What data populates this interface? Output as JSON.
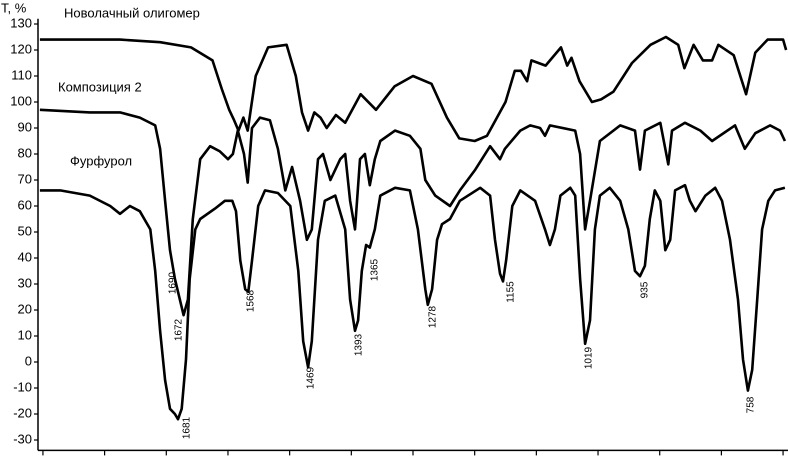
{
  "chart_data": {
    "type": "line",
    "ylabel": "T, %",
    "xlim": [
      1908,
      692
    ],
    "xticks": [
      1900,
      1800,
      1700,
      1600,
      1500,
      1400,
      1300,
      1200,
      1100,
      1000,
      900,
      800,
      700
    ],
    "ylim": [
      -34,
      132
    ],
    "yticks": [
      130,
      120,
      110,
      100,
      90,
      80,
      70,
      60,
      50,
      40,
      30,
      20,
      10,
      0,
      -10,
      -20,
      -30
    ],
    "series": [
      {
        "name": "Новолачный олигомер",
        "color": "#000000",
        "x": [
          1905,
          1840,
          1775,
          1710,
          1660,
          1625,
          1610,
          1598,
          1590,
          1583,
          1575,
          1568,
          1555,
          1535,
          1505,
          1490,
          1480,
          1470,
          1460,
          1450,
          1440,
          1425,
          1410,
          1385,
          1360,
          1330,
          1300,
          1270,
          1245,
          1225,
          1200,
          1180,
          1150,
          1135,
          1125,
          1115,
          1108,
          1085,
          1060,
          1050,
          1043,
          1030,
          1010,
          995,
          975,
          945,
          915,
          890,
          870,
          860,
          845,
          830,
          815,
          805,
          780,
          760,
          745,
          725,
          700,
          695
        ],
        "values": [
          124,
          124,
          124,
          123,
          121,
          116,
          105,
          97,
          93,
          89,
          94,
          89,
          110,
          121,
          122,
          110,
          96,
          89,
          96,
          94,
          90,
          95,
          92,
          103,
          97,
          106,
          110,
          107,
          94,
          86,
          85,
          87,
          100,
          112,
          112,
          108,
          116,
          114,
          121,
          114,
          117,
          108,
          100,
          101,
          104,
          115,
          122,
          125,
          122,
          113,
          122,
          116,
          116,
          122,
          118,
          103,
          119,
          124,
          124,
          120
        ]
      },
      {
        "name": "Композиция 2",
        "color": "#000000",
        "x": [
          1905,
          1824,
          1775,
          1743,
          1718,
          1710,
          1702,
          1694,
          1686,
          1672,
          1665,
          1657,
          1645,
          1629,
          1613,
          1600,
          1592,
          1584,
          1574,
          1568,
          1561,
          1548,
          1532,
          1519,
          1507,
          1496,
          1483,
          1472,
          1464,
          1454,
          1446,
          1434,
          1418,
          1410,
          1402,
          1394,
          1386,
          1378,
          1370,
          1362,
          1353,
          1329,
          1305,
          1288,
          1280,
          1264,
          1240,
          1224,
          1199,
          1175,
          1159,
          1151,
          1126,
          1110,
          1094,
          1086,
          1078,
          1037,
          1029,
          1021,
          1013,
          997,
          964,
          940,
          932,
          924,
          899,
          886,
          880,
          859,
          834,
          815,
          778,
          762,
          745,
          721,
          705,
          697
        ],
        "values": [
          97,
          96,
          96,
          94,
          91,
          82,
          62,
          43,
          32,
          18,
          24,
          55,
          78,
          83,
          81,
          78,
          80,
          89,
          80,
          69,
          90,
          94,
          93,
          82,
          66,
          75,
          62,
          47,
          51,
          78,
          80,
          70,
          78,
          80,
          62,
          51,
          78,
          80,
          68,
          78,
          85,
          89,
          87,
          82,
          70,
          64,
          60,
          66,
          74,
          83,
          78,
          82,
          89,
          91,
          90,
          87,
          91,
          89,
          80,
          51,
          62,
          85,
          91,
          89,
          74,
          89,
          92,
          76,
          89,
          92,
          89,
          85,
          91,
          82,
          88,
          91,
          89,
          85
        ]
      },
      {
        "name": "Фурфурол",
        "color": "#000000",
        "x": [
          1905,
          1872,
          1824,
          1791,
          1775,
          1759,
          1743,
          1726,
          1718,
          1710,
          1702,
          1694,
          1686,
          1681,
          1675,
          1668,
          1662,
          1653,
          1645,
          1621,
          1605,
          1593,
          1587,
          1580,
          1572,
          1567,
          1561,
          1551,
          1540,
          1519,
          1499,
          1486,
          1478,
          1470,
          1464,
          1454,
          1443,
          1426,
          1410,
          1402,
          1394,
          1389,
          1383,
          1376,
          1370,
          1362,
          1353,
          1329,
          1305,
          1292,
          1280,
          1276,
          1269,
          1261,
          1253,
          1240,
          1224,
          1191,
          1175,
          1167,
          1159,
          1154,
          1149,
          1139,
          1126,
          1102,
          1086,
          1078,
          1070,
          1061,
          1045,
          1037,
          1029,
          1021,
          1013,
          1005,
          997,
          981,
          964,
          951,
          940,
          932,
          924,
          916,
          908,
          899,
          891,
          883,
          875,
          859,
          851,
          842,
          826,
          810,
          799,
          786,
          773,
          765,
          757,
          750,
          742,
          734,
          724,
          713,
          697
        ],
        "values": [
          66,
          66,
          64,
          60,
          57,
          60,
          58,
          51,
          35,
          12,
          -7,
          -18,
          -20,
          -22,
          -18,
          1,
          32,
          51,
          55,
          59,
          62,
          62,
          58,
          39,
          28,
          27,
          39,
          60,
          66,
          65,
          60,
          35,
          8,
          -2,
          8,
          47,
          62,
          64,
          51,
          24,
          12,
          16,
          35,
          45,
          44,
          51,
          64,
          67,
          66,
          51,
          28,
          22,
          28,
          47,
          53,
          55,
          62,
          67,
          64,
          47,
          34,
          31,
          39,
          60,
          66,
          62,
          51,
          45,
          51,
          64,
          67,
          64,
          32,
          7,
          16,
          51,
          64,
          67,
          62,
          51,
          35,
          33,
          37,
          55,
          66,
          62,
          43,
          47,
          66,
          68,
          62,
          58,
          64,
          67,
          62,
          47,
          24,
          1,
          -11,
          -3,
          24,
          51,
          62,
          66,
          67
        ]
      }
    ],
    "annotations": [
      "1690",
      "1672",
      "1681",
      "1568",
      "1469",
      "1393",
      "1365",
      "1278",
      "1155",
      "1019",
      "935",
      "758"
    ]
  }
}
